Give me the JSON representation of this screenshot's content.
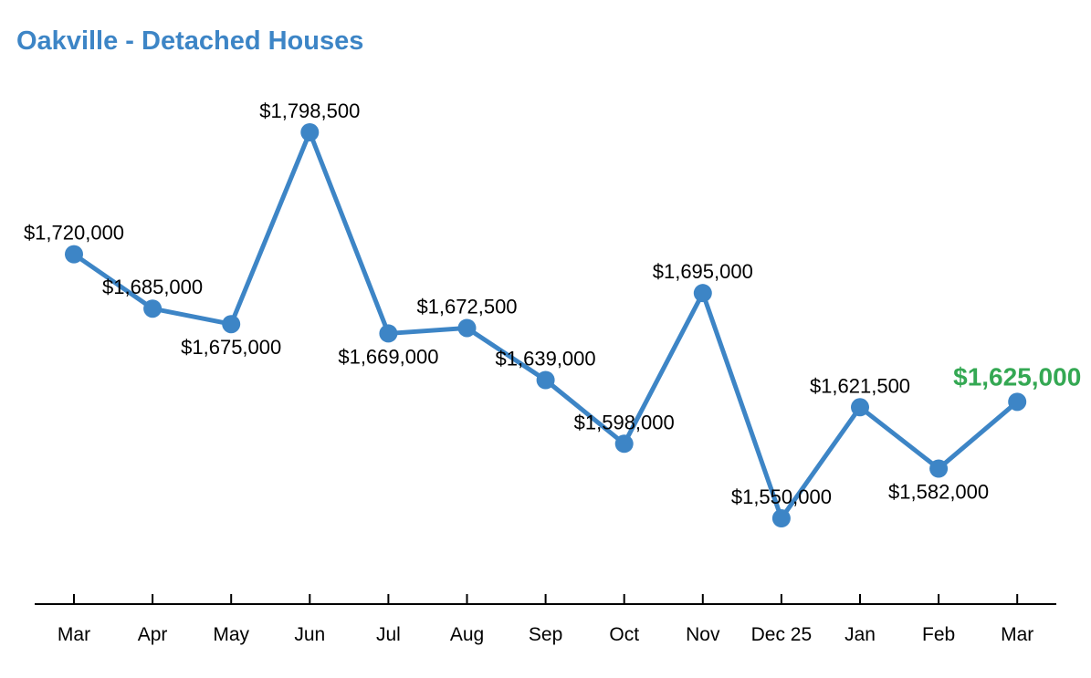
{
  "chart_data": {
    "type": "line",
    "title": "Oakville - Detached Houses",
    "categories": [
      "Mar",
      "Apr",
      "May",
      "Jun",
      "Jul",
      "Aug",
      "Sep",
      "Oct",
      "Nov",
      "Dec 25",
      "Jan",
      "Feb",
      "Mar"
    ],
    "values": [
      1720000,
      1685000,
      1675000,
      1798500,
      1669000,
      1672500,
      1639000,
      1598000,
      1695000,
      1550000,
      1621500,
      1582000,
      1625000
    ],
    "point_labels": [
      "$1,720,000",
      "$1,685,000",
      "$1,675,000",
      "$1,798,500",
      "$1,669,000",
      "$1,672,500",
      "$1,639,000",
      "$1,598,000",
      "$1,695,000",
      "$1,550,000",
      "$1,621,500",
      "$1,582,000",
      "$1,625,000"
    ],
    "label_positions": [
      "above",
      "above",
      "below",
      "above",
      "below",
      "above",
      "above",
      "above",
      "above",
      "above",
      "above",
      "below",
      "above"
    ],
    "last_point_highlighted": true,
    "xlabel": "",
    "ylabel": "",
    "ylim": [
      1550000,
      1798500
    ],
    "grid": false,
    "legend": "none",
    "colors": {
      "title": "#3d85c6",
      "line": "#3d85c6",
      "marker": "#3d85c6",
      "value_label": "#000000",
      "last_value_label": "#34a853",
      "axis": "#000000",
      "axis_label": "#000000",
      "background": "#ffffff"
    }
  }
}
